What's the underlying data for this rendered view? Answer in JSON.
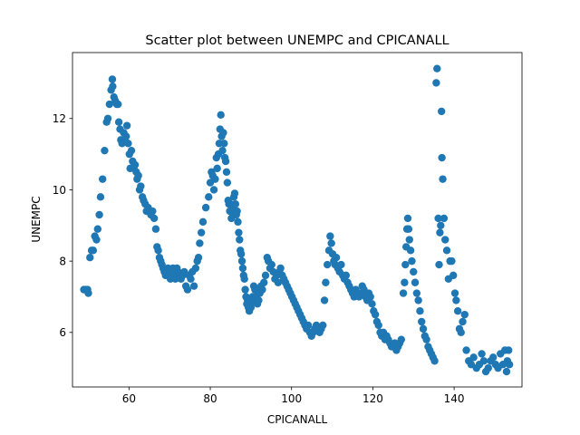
{
  "chart_data": {
    "type": "scatter",
    "title": "Scatter plot between UNEMPC and CPICANALL",
    "xlabel": "CPICANALL",
    "ylabel": "UNEMPC",
    "xlim": [
      46.1,
      156.7
    ],
    "ylim": [
      4.47,
      13.85
    ],
    "xticks": [
      60,
      80,
      100,
      120,
      140
    ],
    "yticks": [
      6,
      8,
      10,
      12
    ],
    "grid": false,
    "legend": "none",
    "marker_color": "#1f77b4",
    "points": [
      [
        48.9,
        7.2
      ],
      [
        49.4,
        7.2
      ],
      [
        49.8,
        7.2
      ],
      [
        50.0,
        7.1
      ],
      [
        50.4,
        8.1
      ],
      [
        50.8,
        8.3
      ],
      [
        51.2,
        8.3
      ],
      [
        51.6,
        8.7
      ],
      [
        52.0,
        8.6
      ],
      [
        52.3,
        8.9
      ],
      [
        52.7,
        9.3
      ],
      [
        53.0,
        9.8
      ],
      [
        53.5,
        10.3
      ],
      [
        54.0,
        11.1
      ],
      [
        54.5,
        11.9
      ],
      [
        54.8,
        12.0
      ],
      [
        55.2,
        12.4
      ],
      [
        55.6,
        12.8
      ],
      [
        55.9,
        13.1
      ],
      [
        56.0,
        12.9
      ],
      [
        56.3,
        12.6
      ],
      [
        56.6,
        12.5
      ],
      [
        57.0,
        12.4
      ],
      [
        57.3,
        12.4
      ],
      [
        57.5,
        11.9
      ],
      [
        57.8,
        11.7
      ],
      [
        58.0,
        11.4
      ],
      [
        58.3,
        11.3
      ],
      [
        58.7,
        11.6
      ],
      [
        59.0,
        11.4
      ],
      [
        59.3,
        11.5
      ],
      [
        59.5,
        11.8
      ],
      [
        59.8,
        11.3
      ],
      [
        60.1,
        11.0
      ],
      [
        60.3,
        10.6
      ],
      [
        60.6,
        11.1
      ],
      [
        60.9,
        10.8
      ],
      [
        61.2,
        10.6
      ],
      [
        61.5,
        10.7
      ],
      [
        61.8,
        10.5
      ],
      [
        62.0,
        10.3
      ],
      [
        62.3,
        10.4
      ],
      [
        62.6,
        10.0
      ],
      [
        62.9,
        10.1
      ],
      [
        63.3,
        9.8
      ],
      [
        63.6,
        9.7
      ],
      [
        64.0,
        9.6
      ],
      [
        64.3,
        9.4
      ],
      [
        64.7,
        9.5
      ],
      [
        65.0,
        9.4
      ],
      [
        65.4,
        9.3
      ],
      [
        65.8,
        9.4
      ],
      [
        66.2,
        9.2
      ],
      [
        66.6,
        8.9
      ],
      [
        66.9,
        8.4
      ],
      [
        67.2,
        8.3
      ],
      [
        67.5,
        8.1
      ],
      [
        67.8,
        8.0
      ],
      [
        68.1,
        7.9
      ],
      [
        68.4,
        7.8
      ],
      [
        68.7,
        7.7
      ],
      [
        69.0,
        7.6
      ],
      [
        69.3,
        7.7
      ],
      [
        69.6,
        7.8
      ],
      [
        69.9,
        7.6
      ],
      [
        70.2,
        7.5
      ],
      [
        70.5,
        7.7
      ],
      [
        70.8,
        7.8
      ],
      [
        71.1,
        7.6
      ],
      [
        71.4,
        7.5
      ],
      [
        71.8,
        7.8
      ],
      [
        72.1,
        7.7
      ],
      [
        72.5,
        7.6
      ],
      [
        72.8,
        7.5
      ],
      [
        73.2,
        7.6
      ],
      [
        73.6,
        7.7
      ],
      [
        74.0,
        7.3
      ],
      [
        74.4,
        7.2
      ],
      [
        74.8,
        7.6
      ],
      [
        75.2,
        7.5
      ],
      [
        75.6,
        7.7
      ],
      [
        76.0,
        7.3
      ],
      [
        76.4,
        7.8
      ],
      [
        76.8,
        8.0
      ],
      [
        77.1,
        8.1
      ],
      [
        77.4,
        8.5
      ],
      [
        77.8,
        8.8
      ],
      [
        78.2,
        9.1
      ],
      [
        78.9,
        9.5
      ],
      [
        79.6,
        9.8
      ],
      [
        80.0,
        10.2
      ],
      [
        80.3,
        10.5
      ],
      [
        80.6,
        10.4
      ],
      [
        80.9,
        10.0
      ],
      [
        81.2,
        10.3
      ],
      [
        81.5,
        10.9
      ],
      [
        81.7,
        10.6
      ],
      [
        82.0,
        11.0
      ],
      [
        82.2,
        11.3
      ],
      [
        82.4,
        11.7
      ],
      [
        82.6,
        12.1
      ],
      [
        82.8,
        11.5
      ],
      [
        83.0,
        11.1
      ],
      [
        83.2,
        11.6
      ],
      [
        83.4,
        11.3
      ],
      [
        83.6,
        10.9
      ],
      [
        83.8,
        10.8
      ],
      [
        84.0,
        10.5
      ],
      [
        84.2,
        10.2
      ],
      [
        84.4,
        9.7
      ],
      [
        84.6,
        9.6
      ],
      [
        84.8,
        9.4
      ],
      [
        85.0,
        9.6
      ],
      [
        85.2,
        9.2
      ],
      [
        85.4,
        9.5
      ],
      [
        85.6,
        9.3
      ],
      [
        85.8,
        9.8
      ],
      [
        86.0,
        9.9
      ],
      [
        86.2,
        9.6
      ],
      [
        86.4,
        9.3
      ],
      [
        86.6,
        9.4
      ],
      [
        86.8,
        9.1
      ],
      [
        87.0,
        8.8
      ],
      [
        87.2,
        8.6
      ],
      [
        87.4,
        8.3
      ],
      [
        87.6,
        8.2
      ],
      [
        87.8,
        8.0
      ],
      [
        88.0,
        7.8
      ],
      [
        88.2,
        7.6
      ],
      [
        88.4,
        7.5
      ],
      [
        88.6,
        7.2
      ],
      [
        88.8,
        7.0
      ],
      [
        89.0,
        6.8
      ],
      [
        89.2,
        6.9
      ],
      [
        89.4,
        6.7
      ],
      [
        89.6,
        6.6
      ],
      [
        89.8,
        6.8
      ],
      [
        90.0,
        6.7
      ],
      [
        90.2,
        6.9
      ],
      [
        90.4,
        7.0
      ],
      [
        90.7,
        7.3
      ],
      [
        91.0,
        7.2
      ],
      [
        91.3,
        7.0
      ],
      [
        91.6,
        6.8
      ],
      [
        91.9,
        6.9
      ],
      [
        92.2,
        7.1
      ],
      [
        92.5,
        7.3
      ],
      [
        92.8,
        7.2
      ],
      [
        93.2,
        7.4
      ],
      [
        93.6,
        7.6
      ],
      [
        94.0,
        8.1
      ],
      [
        94.3,
        8.0
      ],
      [
        94.7,
        7.8
      ],
      [
        95.1,
        7.9
      ],
      [
        95.5,
        7.7
      ],
      [
        95.9,
        7.5
      ],
      [
        96.3,
        7.6
      ],
      [
        96.7,
        7.4
      ],
      [
        97.0,
        7.7
      ],
      [
        97.3,
        7.8
      ],
      [
        97.7,
        7.6
      ],
      [
        98.1,
        7.5
      ],
      [
        98.5,
        7.4
      ],
      [
        98.9,
        7.3
      ],
      [
        99.3,
        7.2
      ],
      [
        99.7,
        7.1
      ],
      [
        100.1,
        7.0
      ],
      [
        100.5,
        6.9
      ],
      [
        100.9,
        6.8
      ],
      [
        101.3,
        6.7
      ],
      [
        101.7,
        6.6
      ],
      [
        102.1,
        6.5
      ],
      [
        102.5,
        6.4
      ],
      [
        102.9,
        6.3
      ],
      [
        103.3,
        6.2
      ],
      [
        103.7,
        6.1
      ],
      [
        104.1,
        6.2
      ],
      [
        104.5,
        6.0
      ],
      [
        104.9,
        5.9
      ],
      [
        105.3,
        6.0
      ],
      [
        105.7,
        6.1
      ],
      [
        106.1,
        6.2
      ],
      [
        106.5,
        6.1
      ],
      [
        106.9,
        6.0
      ],
      [
        107.3,
        6.1
      ],
      [
        107.7,
        6.2
      ],
      [
        108.1,
        6.9
      ],
      [
        108.4,
        7.4
      ],
      [
        108.8,
        7.9
      ],
      [
        109.2,
        8.3
      ],
      [
        109.5,
        8.7
      ],
      [
        109.8,
        8.5
      ],
      [
        110.1,
        8.2
      ],
      [
        110.4,
        8.0
      ],
      [
        110.7,
        7.9
      ],
      [
        111.0,
        8.1
      ],
      [
        111.4,
        7.8
      ],
      [
        111.8,
        7.7
      ],
      [
        112.2,
        7.9
      ],
      [
        112.6,
        7.6
      ],
      [
        113.0,
        7.5
      ],
      [
        113.4,
        7.6
      ],
      [
        113.8,
        7.4
      ],
      [
        114.2,
        7.3
      ],
      [
        114.6,
        7.2
      ],
      [
        115.0,
        7.1
      ],
      [
        115.4,
        7.0
      ],
      [
        115.8,
        7.2
      ],
      [
        116.2,
        7.1
      ],
      [
        116.6,
        7.0
      ],
      [
        117.0,
        7.1
      ],
      [
        117.4,
        7.3
      ],
      [
        117.8,
        7.2
      ],
      [
        118.2,
        7.0
      ],
      [
        118.6,
        6.9
      ],
      [
        119.0,
        7.1
      ],
      [
        119.4,
        7.0
      ],
      [
        119.8,
        6.8
      ],
      [
        120.2,
        6.6
      ],
      [
        120.6,
        6.5
      ],
      [
        121.0,
        6.3
      ],
      [
        121.4,
        6.2
      ],
      [
        121.8,
        6.0
      ],
      [
        122.2,
        5.9
      ],
      [
        122.6,
        6.0
      ],
      [
        123.0,
        5.8
      ],
      [
        123.4,
        5.9
      ],
      [
        123.8,
        5.8
      ],
      [
        124.2,
        5.7
      ],
      [
        124.6,
        5.6
      ],
      [
        125.0,
        5.6
      ],
      [
        125.4,
        5.7
      ],
      [
        125.8,
        5.5
      ],
      [
        126.2,
        5.6
      ],
      [
        126.6,
        5.7
      ],
      [
        127.0,
        5.8
      ],
      [
        127.5,
        7.1
      ],
      [
        127.8,
        7.4
      ],
      [
        128.0,
        7.9
      ],
      [
        128.2,
        8.4
      ],
      [
        128.4,
        8.9
      ],
      [
        128.6,
        9.2
      ],
      [
        128.8,
        8.9
      ],
      [
        129.0,
        8.6
      ],
      [
        129.3,
        8.3
      ],
      [
        129.6,
        8.0
      ],
      [
        130.0,
        7.7
      ],
      [
        130.4,
        7.4
      ],
      [
        130.8,
        7.1
      ],
      [
        131.2,
        6.9
      ],
      [
        131.6,
        6.6
      ],
      [
        132.0,
        6.3
      ],
      [
        132.4,
        6.1
      ],
      [
        132.8,
        5.9
      ],
      [
        133.2,
        5.8
      ],
      [
        133.6,
        5.6
      ],
      [
        134.0,
        5.5
      ],
      [
        134.4,
        5.4
      ],
      [
        134.8,
        5.3
      ],
      [
        135.2,
        5.2
      ],
      [
        135.6,
        13.0
      ],
      [
        135.8,
        13.4
      ],
      [
        136.1,
        9.2
      ],
      [
        136.3,
        7.9
      ],
      [
        136.5,
        8.8
      ],
      [
        136.7,
        9.0
      ],
      [
        136.9,
        12.2
      ],
      [
        137.0,
        10.9
      ],
      [
        137.2,
        10.3
      ],
      [
        137.5,
        9.2
      ],
      [
        137.8,
        8.6
      ],
      [
        138.2,
        8.3
      ],
      [
        138.6,
        7.5
      ],
      [
        139.0,
        8.0
      ],
      [
        139.4,
        8.0
      ],
      [
        139.8,
        7.6
      ],
      [
        140.2,
        7.1
      ],
      [
        140.5,
        6.9
      ],
      [
        140.9,
        6.6
      ],
      [
        141.3,
        6.1
      ],
      [
        141.7,
        6.0
      ],
      [
        142.1,
        6.3
      ],
      [
        142.6,
        6.5
      ],
      [
        143.0,
        5.5
      ],
      [
        143.6,
        5.2
      ],
      [
        144.2,
        5.1
      ],
      [
        144.8,
        5.3
      ],
      [
        145.5,
        5.0
      ],
      [
        146.2,
        5.1
      ],
      [
        146.8,
        5.4
      ],
      [
        147.3,
        5.2
      ],
      [
        147.8,
        4.9
      ],
      [
        148.4,
        5.0
      ],
      [
        149.0,
        5.2
      ],
      [
        149.6,
        5.3
      ],
      [
        150.2,
        5.1
      ],
      [
        150.8,
        5.0
      ],
      [
        151.4,
        5.4
      ],
      [
        152.0,
        5.1
      ],
      [
        152.5,
        5.5
      ],
      [
        152.9,
        4.9
      ],
      [
        153.1,
        5.2
      ],
      [
        153.4,
        5.5
      ],
      [
        153.6,
        5.1
      ]
    ]
  }
}
